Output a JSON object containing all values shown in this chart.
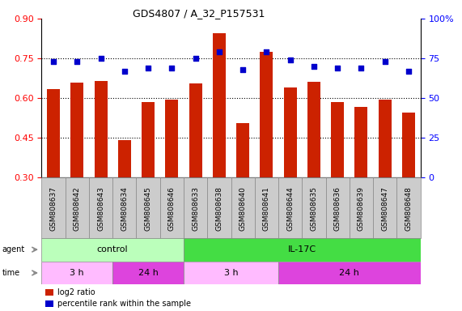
{
  "title": "GDS4807 / A_32_P157531",
  "samples": [
    "GSM808637",
    "GSM808642",
    "GSM808643",
    "GSM808634",
    "GSM808645",
    "GSM808646",
    "GSM808633",
    "GSM808638",
    "GSM808640",
    "GSM808641",
    "GSM808644",
    "GSM808635",
    "GSM808636",
    "GSM808639",
    "GSM808647",
    "GSM808648"
  ],
  "log2_ratio": [
    0.635,
    0.658,
    0.665,
    0.442,
    0.585,
    0.595,
    0.655,
    0.845,
    0.505,
    0.775,
    0.64,
    0.66,
    0.585,
    0.565,
    0.595,
    0.545
  ],
  "percentile": [
    73,
    73,
    75,
    67,
    69,
    69,
    75,
    79,
    68,
    79,
    74,
    70,
    69,
    69,
    73,
    67
  ],
  "ylim_left": [
    0.3,
    0.9
  ],
  "ylim_right": [
    0,
    100
  ],
  "yticks_left": [
    0.3,
    0.45,
    0.6,
    0.75,
    0.9
  ],
  "yticks_right": [
    0,
    25,
    50,
    75,
    100
  ],
  "ytick_right_labels": [
    "0",
    "25",
    "50",
    "75",
    "100%"
  ],
  "bar_color": "#cc2200",
  "dot_color": "#0000cc",
  "agent_groups": [
    {
      "label": "control",
      "start": 0,
      "end": 6,
      "color": "#bbffbb"
    },
    {
      "label": "IL-17C",
      "start": 6,
      "end": 16,
      "color": "#44dd44"
    }
  ],
  "time_groups": [
    {
      "label": "3 h",
      "start": 0,
      "end": 3,
      "color": "#ffbbff"
    },
    {
      "label": "24 h",
      "start": 3,
      "end": 6,
      "color": "#dd44dd"
    },
    {
      "label": "3 h",
      "start": 6,
      "end": 10,
      "color": "#ffbbff"
    },
    {
      "label": "24 h",
      "start": 10,
      "end": 16,
      "color": "#dd44dd"
    }
  ],
  "legend_items": [
    {
      "label": "log2 ratio",
      "color": "#cc2200"
    },
    {
      "label": "percentile rank within the sample",
      "color": "#0000cc"
    }
  ],
  "xtick_bg": "#cccccc",
  "spine_color": "#888888"
}
